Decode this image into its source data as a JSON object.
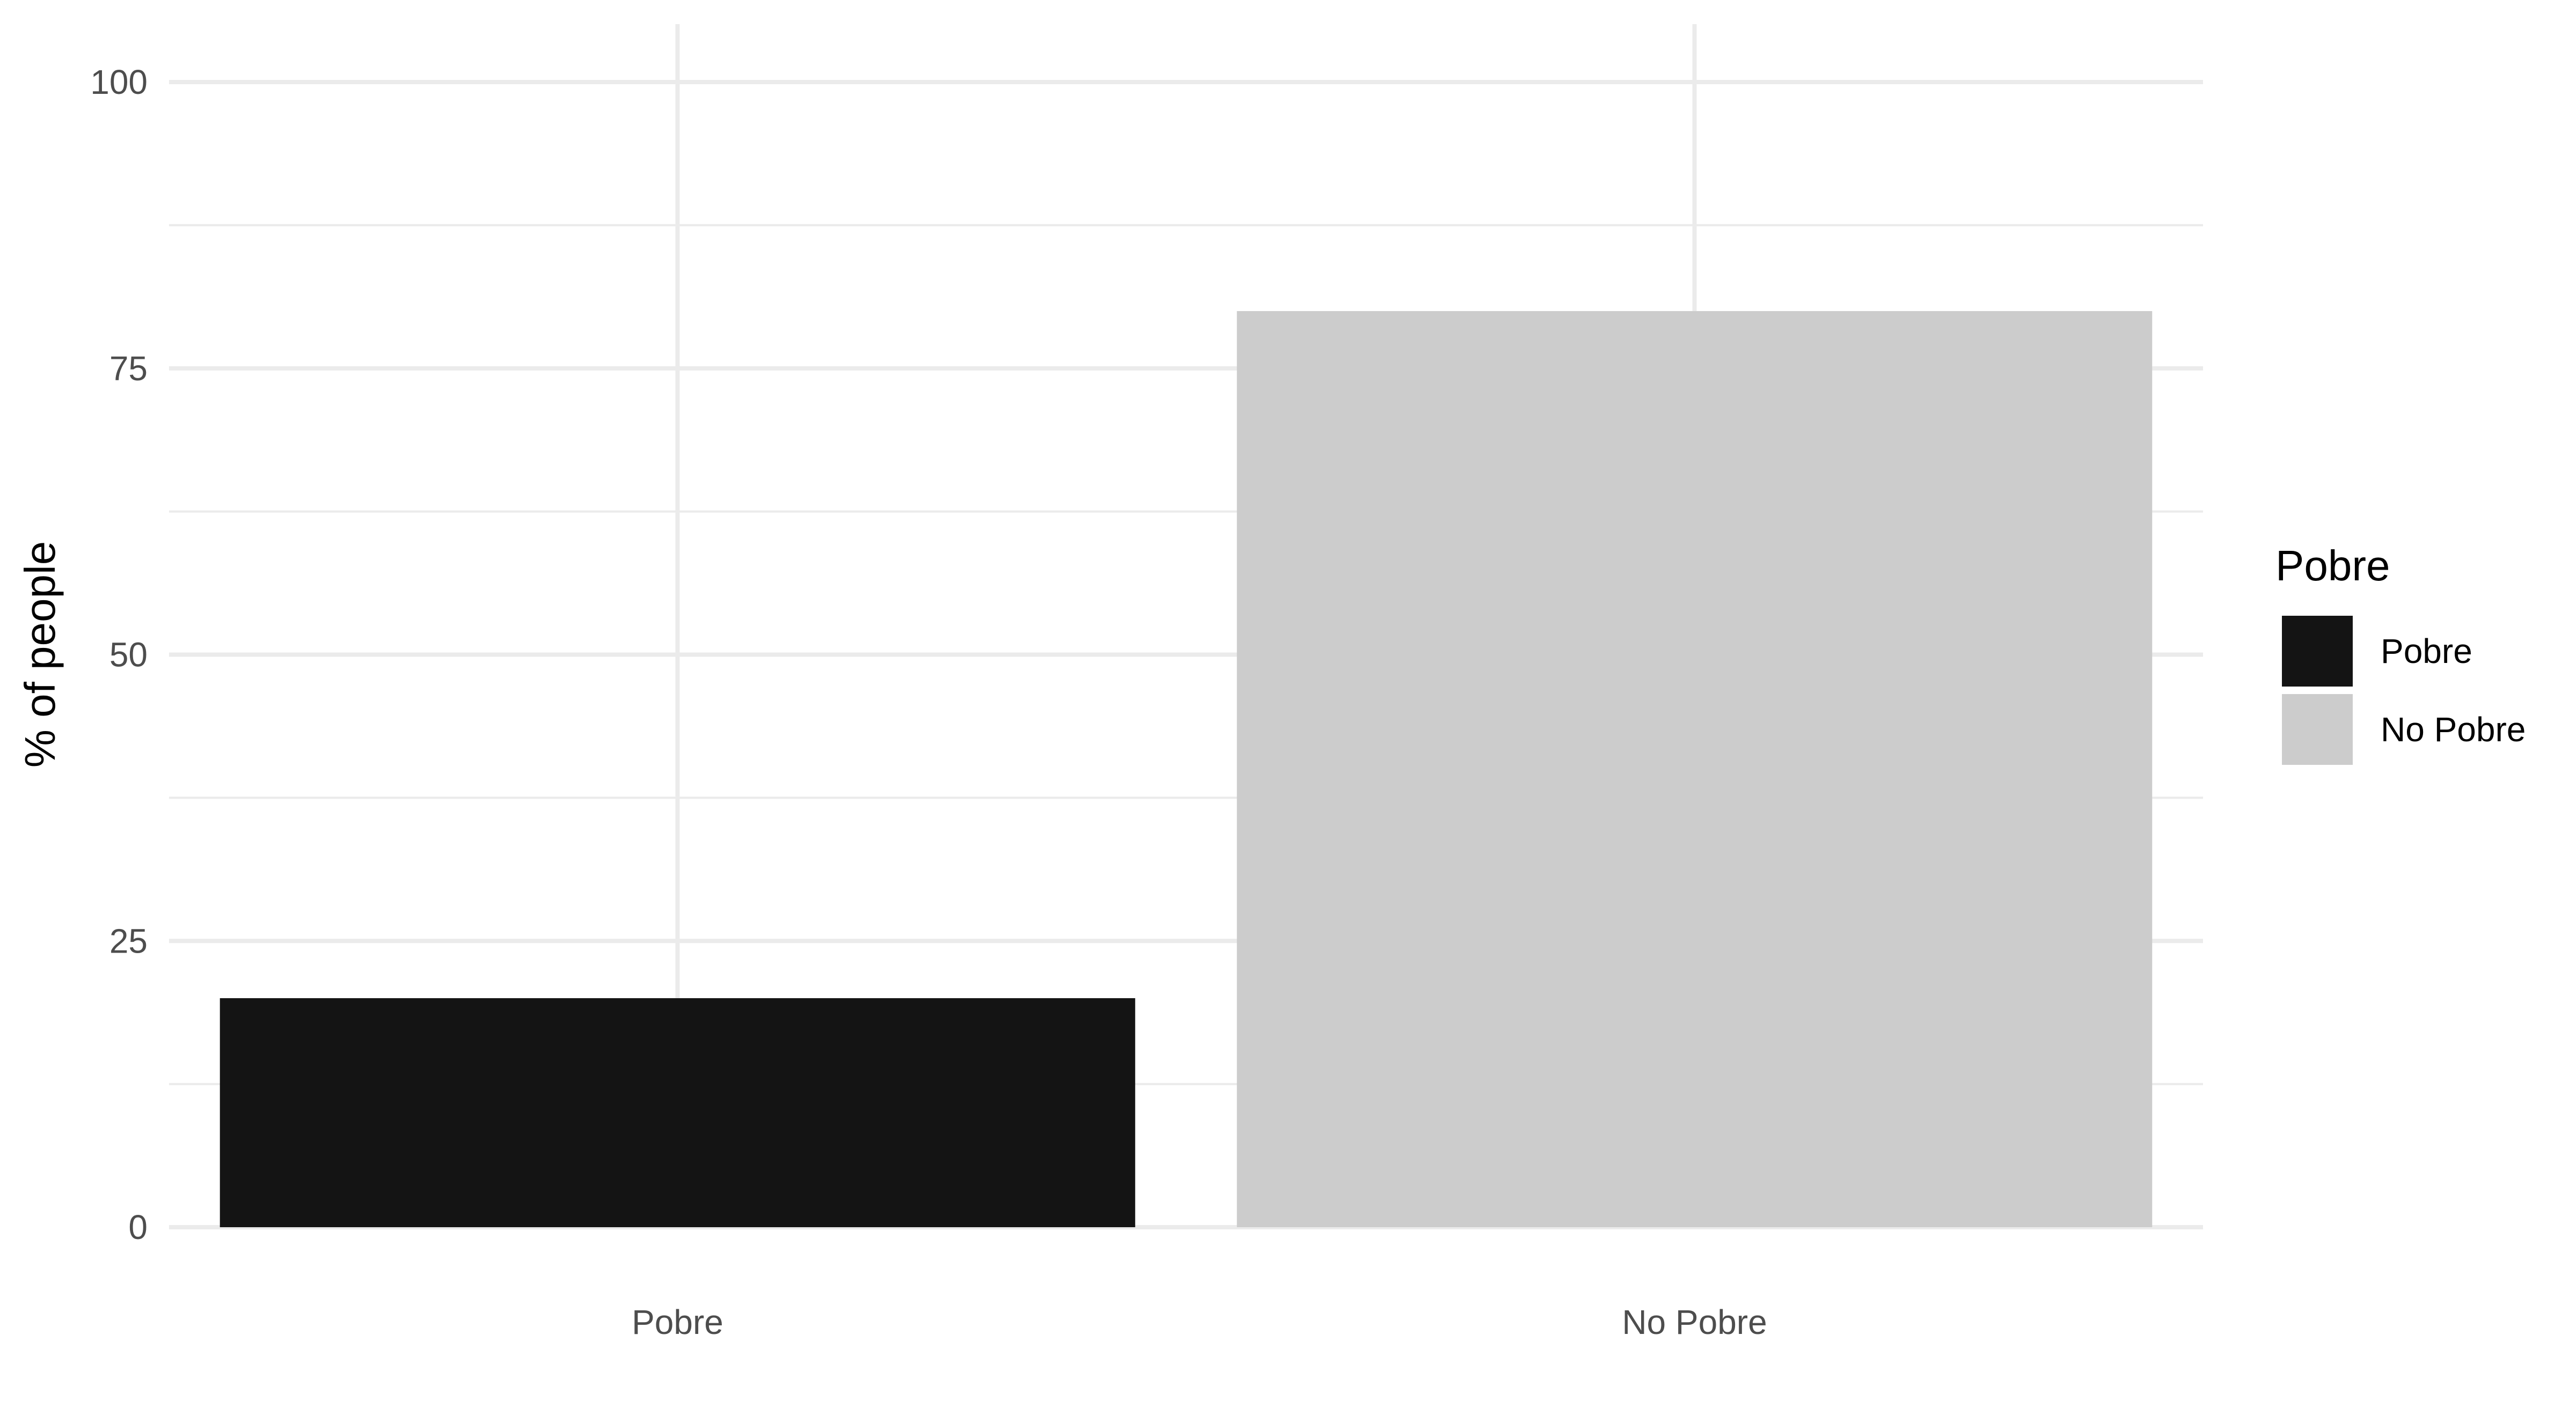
{
  "chart_data": {
    "type": "bar",
    "categories": [
      "Pobre",
      "No Pobre"
    ],
    "values": [
      20,
      80
    ],
    "colors": [
      "#141414",
      "#cccccc"
    ],
    "ylabel": "% of people",
    "xlabel": "",
    "ylim": [
      0,
      100
    ],
    "yticks": [
      0,
      25,
      50,
      75,
      100
    ],
    "ytick_labels": [
      "0",
      "25",
      "50",
      "75",
      "100"
    ],
    "grid": true,
    "legend": {
      "title": "Pobre",
      "placement": "right",
      "entries": [
        {
          "label": "Pobre",
          "color": "#141414"
        },
        {
          "label": "No Pobre",
          "color": "#cccccc"
        }
      ]
    }
  }
}
